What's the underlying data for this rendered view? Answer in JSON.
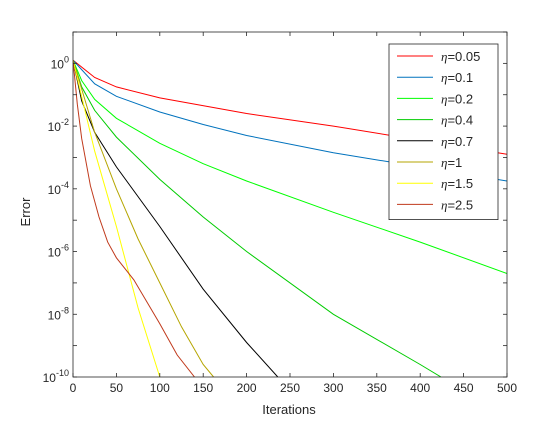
{
  "chart_data": {
    "type": "line",
    "title": "",
    "xlabel": "Iterations",
    "ylabel": "Error",
    "xlim": [
      0,
      500
    ],
    "ylim_log10": [
      -10,
      1
    ],
    "y_scale": "log",
    "grid": false,
    "legend_position": "top-right",
    "x_ticks": [
      0,
      50,
      100,
      150,
      200,
      250,
      300,
      350,
      400,
      450,
      500
    ],
    "y_ticks": [
      {
        "mantissa": "10",
        "exponent": "0",
        "value": 0
      },
      {
        "mantissa": "10",
        "exponent": "-2",
        "value": -2
      },
      {
        "mantissa": "10",
        "exponent": "-4",
        "value": -4
      },
      {
        "mantissa": "10",
        "exponent": "-6",
        "value": -6
      },
      {
        "mantissa": "10",
        "exponent": "-8",
        "value": -8
      },
      {
        "mantissa": "10",
        "exponent": "-10",
        "value": -10
      }
    ],
    "series": [
      {
        "name": "0.05",
        "color": "#ff0000",
        "x": [
          0,
          25,
          50,
          100,
          200,
          300,
          400,
          500
        ],
        "log10_y": [
          0.1,
          -0.45,
          -0.75,
          -1.1,
          -1.6,
          -2.0,
          -2.45,
          -2.9
        ]
      },
      {
        "name": "0.1",
        "color": "#0072bd",
        "x": [
          0,
          25,
          50,
          100,
          150,
          200,
          300,
          400,
          500
        ],
        "log10_y": [
          0.1,
          -0.65,
          -1.05,
          -1.55,
          -1.95,
          -2.3,
          -2.85,
          -3.3,
          -3.75
        ]
      },
      {
        "name": "0.2",
        "color": "#00ff00",
        "x": [
          0,
          10,
          25,
          50,
          100,
          150,
          200,
          300,
          400,
          500
        ],
        "log10_y": [
          0.1,
          -0.55,
          -1.15,
          -1.75,
          -2.55,
          -3.2,
          -3.75,
          -4.75,
          -5.7,
          -6.7
        ]
      },
      {
        "name": "0.4",
        "color": "#00cc00",
        "x": [
          0,
          10,
          25,
          50,
          100,
          150,
          200,
          300,
          400,
          424
        ],
        "log10_y": [
          0.1,
          -0.75,
          -1.5,
          -2.35,
          -3.7,
          -4.9,
          -6.0,
          -8.0,
          -9.6,
          -10.0
        ]
      },
      {
        "name": "0.7",
        "color": "#000000",
        "x": [
          0,
          10,
          25,
          50,
          100,
          150,
          200,
          236
        ],
        "log10_y": [
          0.1,
          -1.2,
          -2.2,
          -3.3,
          -5.2,
          -7.2,
          -8.9,
          -10.0
        ]
      },
      {
        "name": "1",
        "color": "#b5a500",
        "x": [
          0,
          25,
          50,
          75,
          100,
          125,
          150,
          162
        ],
        "log10_y": [
          0.1,
          -2.2,
          -4.0,
          -5.6,
          -7.0,
          -8.4,
          -9.6,
          -10.0
        ]
      },
      {
        "name": "1.5",
        "color": "#ffff00",
        "x": [
          0,
          25,
          50,
          75,
          100
        ],
        "log10_y": [
          0.1,
          -2.8,
          -5.2,
          -7.8,
          -10.0
        ]
      },
      {
        "name": "2.5",
        "color": "#c0391b",
        "x": [
          0,
          5,
          10,
          20,
          30,
          40,
          50,
          70,
          100,
          120,
          140
        ],
        "log10_y": [
          0.1,
          -1.3,
          -2.4,
          -3.9,
          -4.9,
          -5.7,
          -6.2,
          -6.9,
          -8.3,
          -9.3,
          -10.0
        ]
      }
    ]
  }
}
